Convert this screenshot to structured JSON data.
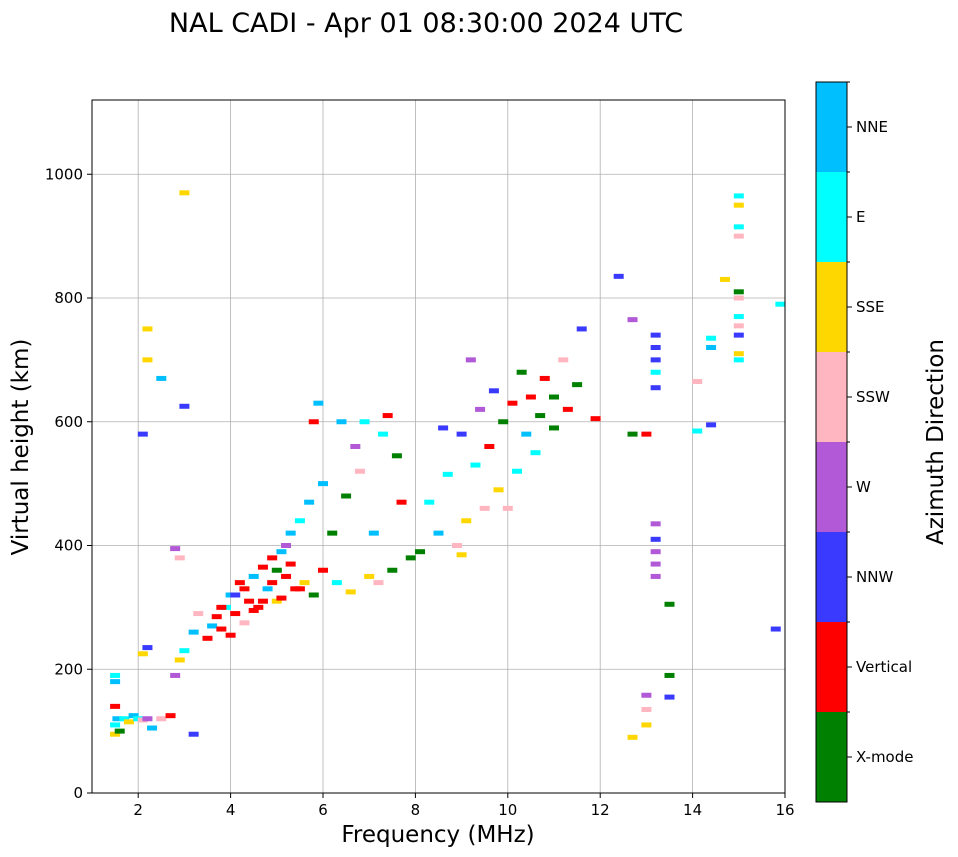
{
  "chart_data": {
    "type": "scatter",
    "title": "NAL CADI - Apr 01 08:30:00 2024 UTC",
    "xlabel": "Frequency (MHz)",
    "ylabel": "Virtual height (km)",
    "xlim": [
      1,
      16
    ],
    "ylim": [
      0,
      1120
    ],
    "x_ticks": [
      2,
      4,
      6,
      8,
      10,
      12,
      14,
      16
    ],
    "y_ticks": [
      0,
      200,
      400,
      600,
      800,
      1000
    ],
    "grid": true,
    "colorbar": {
      "label": "Azimuth Direction",
      "categories": [
        {
          "name": "X-mode",
          "color": "#008000"
        },
        {
          "name": "Vertical",
          "color": "#ff0000"
        },
        {
          "name": "NNW",
          "color": "#3a3aff"
        },
        {
          "name": "W",
          "color": "#b159d6"
        },
        {
          "name": "SSW",
          "color": "#ffb6c1"
        },
        {
          "name": "SSE",
          "color": "#ffd700"
        },
        {
          "name": "E",
          "color": "#00ffff"
        },
        {
          "name": "NNE",
          "color": "#00bfff"
        }
      ]
    },
    "points": [
      {
        "f": 1.5,
        "h": 110,
        "c": "E"
      },
      {
        "f": 1.5,
        "h": 95,
        "c": "SSE"
      },
      {
        "f": 1.55,
        "h": 120,
        "c": "NNE"
      },
      {
        "f": 1.6,
        "h": 100,
        "c": "X-mode"
      },
      {
        "f": 1.5,
        "h": 180,
        "c": "NNE"
      },
      {
        "f": 1.5,
        "h": 190,
        "c": "E"
      },
      {
        "f": 1.5,
        "h": 140,
        "c": "Vertical"
      },
      {
        "f": 1.7,
        "h": 120,
        "c": "E"
      },
      {
        "f": 1.8,
        "h": 115,
        "c": "SSE"
      },
      {
        "f": 1.9,
        "h": 125,
        "c": "NNE"
      },
      {
        "f": 2.0,
        "h": 120,
        "c": "E"
      },
      {
        "f": 2.1,
        "h": 118,
        "c": "SSW"
      },
      {
        "f": 2.2,
        "h": 120,
        "c": "W"
      },
      {
        "f": 2.3,
        "h": 105,
        "c": "NNE"
      },
      {
        "f": 2.5,
        "h": 120,
        "c": "SSW"
      },
      {
        "f": 2.7,
        "h": 125,
        "c": "Vertical"
      },
      {
        "f": 2.1,
        "h": 225,
        "c": "SSE"
      },
      {
        "f": 2.2,
        "h": 235,
        "c": "NNW"
      },
      {
        "f": 2.1,
        "h": 580,
        "c": "NNW"
      },
      {
        "f": 2.2,
        "h": 700,
        "c": "SSE"
      },
      {
        "f": 2.2,
        "h": 750,
        "c": "SSE"
      },
      {
        "f": 2.5,
        "h": 670,
        "c": "NNE"
      },
      {
        "f": 3.0,
        "h": 970,
        "c": "SSE"
      },
      {
        "f": 3.0,
        "h": 625,
        "c": "NNW"
      },
      {
        "f": 2.8,
        "h": 395,
        "c": "W"
      },
      {
        "f": 2.9,
        "h": 380,
        "c": "SSW"
      },
      {
        "f": 3.2,
        "h": 95,
        "c": "NNW"
      },
      {
        "f": 2.8,
        "h": 190,
        "c": "W"
      },
      {
        "f": 2.9,
        "h": 215,
        "c": "SSE"
      },
      {
        "f": 3.0,
        "h": 230,
        "c": "E"
      },
      {
        "f": 3.2,
        "h": 260,
        "c": "NNE"
      },
      {
        "f": 3.3,
        "h": 290,
        "c": "SSW"
      },
      {
        "f": 3.5,
        "h": 250,
        "c": "Vertical"
      },
      {
        "f": 3.6,
        "h": 270,
        "c": "NNE"
      },
      {
        "f": 3.7,
        "h": 285,
        "c": "Vertical"
      },
      {
        "f": 3.8,
        "h": 265,
        "c": "Vertical"
      },
      {
        "f": 3.9,
        "h": 300,
        "c": "E"
      },
      {
        "f": 4.0,
        "h": 255,
        "c": "Vertical"
      },
      {
        "f": 4.0,
        "h": 320,
        "c": "NNE"
      },
      {
        "f": 4.1,
        "h": 290,
        "c": "Vertical"
      },
      {
        "f": 4.2,
        "h": 340,
        "c": "Vertical"
      },
      {
        "f": 4.3,
        "h": 275,
        "c": "SSW"
      },
      {
        "f": 4.4,
        "h": 310,
        "c": "Vertical"
      },
      {
        "f": 4.5,
        "h": 350,
        "c": "NNE"
      },
      {
        "f": 4.6,
        "h": 300,
        "c": "Vertical"
      },
      {
        "f": 4.7,
        "h": 365,
        "c": "Vertical"
      },
      {
        "f": 4.8,
        "h": 330,
        "c": "NNE"
      },
      {
        "f": 4.9,
        "h": 380,
        "c": "Vertical"
      },
      {
        "f": 5.0,
        "h": 310,
        "c": "SSE"
      },
      {
        "f": 5.1,
        "h": 390,
        "c": "NNE"
      },
      {
        "f": 5.2,
        "h": 350,
        "c": "Vertical"
      },
      {
        "f": 5.3,
        "h": 420,
        "c": "NNE"
      },
      {
        "f": 5.4,
        "h": 330,
        "c": "Vertical"
      },
      {
        "f": 5.5,
        "h": 440,
        "c": "E"
      },
      {
        "f": 5.6,
        "h": 340,
        "c": "SSE"
      },
      {
        "f": 5.7,
        "h": 470,
        "c": "NNE"
      },
      {
        "f": 5.8,
        "h": 320,
        "c": "X-mode"
      },
      {
        "f": 3.8,
        "h": 300,
        "c": "Vertical"
      },
      {
        "f": 4.1,
        "h": 320,
        "c": "NNW"
      },
      {
        "f": 4.3,
        "h": 330,
        "c": "Vertical"
      },
      {
        "f": 4.5,
        "h": 295,
        "c": "Vertical"
      },
      {
        "f": 4.7,
        "h": 310,
        "c": "Vertical"
      },
      {
        "f": 4.9,
        "h": 340,
        "c": "Vertical"
      },
      {
        "f": 5.1,
        "h": 315,
        "c": "Vertical"
      },
      {
        "f": 5.3,
        "h": 370,
        "c": "Vertical"
      },
      {
        "f": 5.5,
        "h": 330,
        "c": "Vertical"
      },
      {
        "f": 5.2,
        "h": 400,
        "c": "W"
      },
      {
        "f": 5.0,
        "h": 360,
        "c": "X-mode"
      },
      {
        "f": 6.0,
        "h": 500,
        "c": "NNE"
      },
      {
        "f": 6.0,
        "h": 360,
        "c": "Vertical"
      },
      {
        "f": 6.2,
        "h": 420,
        "c": "X-mode"
      },
      {
        "f": 6.3,
        "h": 340,
        "c": "E"
      },
      {
        "f": 6.5,
        "h": 480,
        "c": "X-mode"
      },
      {
        "f": 6.6,
        "h": 325,
        "c": "SSE"
      },
      {
        "f": 6.8,
        "h": 520,
        "c": "SSW"
      },
      {
        "f": 7.0,
        "h": 350,
        "c": "SSE"
      },
      {
        "f": 7.1,
        "h": 420,
        "c": "NNE"
      },
      {
        "f": 7.3,
        "h": 580,
        "c": "E"
      },
      {
        "f": 7.5,
        "h": 360,
        "c": "X-mode"
      },
      {
        "f": 7.7,
        "h": 470,
        "c": "Vertical"
      },
      {
        "f": 7.9,
        "h": 380,
        "c": "X-mode"
      },
      {
        "f": 6.4,
        "h": 600,
        "c": "NNE"
      },
      {
        "f": 6.9,
        "h": 600,
        "c": "E"
      },
      {
        "f": 7.4,
        "h": 610,
        "c": "Vertical"
      },
      {
        "f": 5.9,
        "h": 630,
        "c": "NNE"
      },
      {
        "f": 5.8,
        "h": 600,
        "c": "Vertical"
      },
      {
        "f": 6.7,
        "h": 560,
        "c": "W"
      },
      {
        "f": 7.2,
        "h": 340,
        "c": "SSW"
      },
      {
        "f": 7.6,
        "h": 545,
        "c": "X-mode"
      },
      {
        "f": 8.1,
        "h": 390,
        "c": "X-mode"
      },
      {
        "f": 8.3,
        "h": 470,
        "c": "E"
      },
      {
        "f": 8.5,
        "h": 420,
        "c": "NNE"
      },
      {
        "f": 8.7,
        "h": 515,
        "c": "E"
      },
      {
        "f": 8.9,
        "h": 400,
        "c": "SSW"
      },
      {
        "f": 9.0,
        "h": 580,
        "c": "NNW"
      },
      {
        "f": 9.1,
        "h": 440,
        "c": "SSE"
      },
      {
        "f": 9.3,
        "h": 530,
        "c": "E"
      },
      {
        "f": 9.4,
        "h": 620,
        "c": "W"
      },
      {
        "f": 9.5,
        "h": 460,
        "c": "SSW"
      },
      {
        "f": 9.6,
        "h": 560,
        "c": "Vertical"
      },
      {
        "f": 9.7,
        "h": 650,
        "c": "NNW"
      },
      {
        "f": 9.8,
        "h": 490,
        "c": "SSE"
      },
      {
        "f": 9.9,
        "h": 600,
        "c": "X-mode"
      },
      {
        "f": 10.0,
        "h": 460,
        "c": "SSW"
      },
      {
        "f": 10.1,
        "h": 630,
        "c": "Vertical"
      },
      {
        "f": 10.2,
        "h": 520,
        "c": "E"
      },
      {
        "f": 10.3,
        "h": 680,
        "c": "X-mode"
      },
      {
        "f": 10.4,
        "h": 580,
        "c": "NNE"
      },
      {
        "f": 10.5,
        "h": 640,
        "c": "Vertical"
      },
      {
        "f": 10.7,
        "h": 610,
        "c": "X-mode"
      },
      {
        "f": 10.8,
        "h": 670,
        "c": "Vertical"
      },
      {
        "f": 11.0,
        "h": 640,
        "c": "X-mode"
      },
      {
        "f": 11.2,
        "h": 700,
        "c": "SSW"
      },
      {
        "f": 11.3,
        "h": 620,
        "c": "Vertical"
      },
      {
        "f": 11.5,
        "h": 660,
        "c": "X-mode"
      },
      {
        "f": 11.6,
        "h": 750,
        "c": "NNW"
      },
      {
        "f": 9.2,
        "h": 700,
        "c": "W"
      },
      {
        "f": 8.6,
        "h": 590,
        "c": "NNW"
      },
      {
        "f": 9.0,
        "h": 385,
        "c": "SSE"
      },
      {
        "f": 11.0,
        "h": 590,
        "c": "X-mode"
      },
      {
        "f": 10.6,
        "h": 550,
        "c": "E"
      },
      {
        "f": 11.9,
        "h": 605,
        "c": "Vertical"
      },
      {
        "f": 12.4,
        "h": 835,
        "c": "NNW"
      },
      {
        "f": 12.7,
        "h": 765,
        "c": "W"
      },
      {
        "f": 12.7,
        "h": 580,
        "c": "X-mode"
      },
      {
        "f": 13.0,
        "h": 580,
        "c": "Vertical"
      },
      {
        "f": 12.7,
        "h": 90,
        "c": "SSE"
      },
      {
        "f": 13.0,
        "h": 110,
        "c": "SSE"
      },
      {
        "f": 13.0,
        "h": 135,
        "c": "SSW"
      },
      {
        "f": 13.0,
        "h": 158,
        "c": "W"
      },
      {
        "f": 13.2,
        "h": 740,
        "c": "NNW"
      },
      {
        "f": 13.2,
        "h": 720,
        "c": "NNW"
      },
      {
        "f": 13.2,
        "h": 700,
        "c": "NNW"
      },
      {
        "f": 13.2,
        "h": 680,
        "c": "E"
      },
      {
        "f": 13.2,
        "h": 655,
        "c": "NNW"
      },
      {
        "f": 13.2,
        "h": 435,
        "c": "W"
      },
      {
        "f": 13.2,
        "h": 410,
        "c": "NNW"
      },
      {
        "f": 13.2,
        "h": 390,
        "c": "W"
      },
      {
        "f": 13.2,
        "h": 370,
        "c": "W"
      },
      {
        "f": 13.2,
        "h": 350,
        "c": "W"
      },
      {
        "f": 13.5,
        "h": 305,
        "c": "X-mode"
      },
      {
        "f": 13.5,
        "h": 190,
        "c": "X-mode"
      },
      {
        "f": 13.5,
        "h": 155,
        "c": "NNW"
      },
      {
        "f": 14.1,
        "h": 665,
        "c": "SSW"
      },
      {
        "f": 14.1,
        "h": 585,
        "c": "E"
      },
      {
        "f": 14.4,
        "h": 735,
        "c": "E"
      },
      {
        "f": 14.4,
        "h": 720,
        "c": "NNE"
      },
      {
        "f": 14.4,
        "h": 595,
        "c": "NNW"
      },
      {
        "f": 14.7,
        "h": 830,
        "c": "SSE"
      },
      {
        "f": 15.0,
        "h": 965,
        "c": "E"
      },
      {
        "f": 15.0,
        "h": 950,
        "c": "SSE"
      },
      {
        "f": 15.0,
        "h": 915,
        "c": "E"
      },
      {
        "f": 15.0,
        "h": 900,
        "c": "SSW"
      },
      {
        "f": 15.0,
        "h": 810,
        "c": "X-mode"
      },
      {
        "f": 15.0,
        "h": 800,
        "c": "SSW"
      },
      {
        "f": 15.0,
        "h": 770,
        "c": "E"
      },
      {
        "f": 15.0,
        "h": 755,
        "c": "SSW"
      },
      {
        "f": 15.0,
        "h": 740,
        "c": "NNW"
      },
      {
        "f": 15.0,
        "h": 710,
        "c": "SSE"
      },
      {
        "f": 15.0,
        "h": 700,
        "c": "E"
      },
      {
        "f": 15.9,
        "h": 790,
        "c": "E"
      },
      {
        "f": 15.8,
        "h": 265,
        "c": "NNW"
      }
    ]
  }
}
